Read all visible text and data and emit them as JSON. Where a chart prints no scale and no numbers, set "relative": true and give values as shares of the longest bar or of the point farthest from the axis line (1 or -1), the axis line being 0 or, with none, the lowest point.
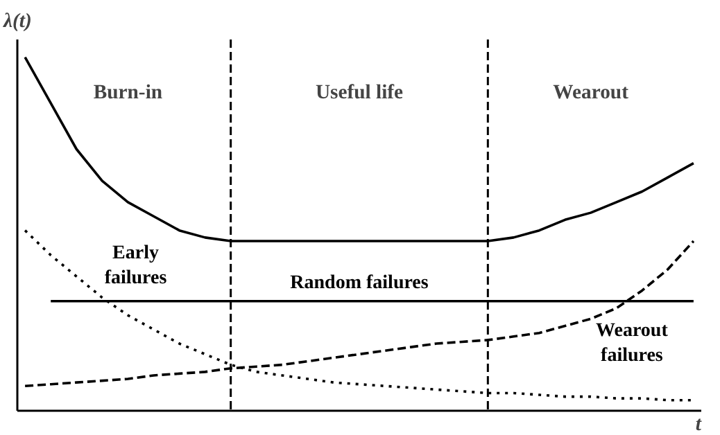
{
  "chart_data": {
    "type": "line",
    "relative": true,
    "ylabel": "λ(t)",
    "xlabel": "t",
    "categories": [
      null,
      null,
      null,
      null,
      null,
      null,
      null,
      null,
      null,
      null,
      null,
      null,
      null,
      null,
      null,
      null,
      null,
      null,
      null,
      null,
      null,
      null,
      null,
      null,
      null,
      null,
      null
    ],
    "series": [
      {
        "color": "#000000",
        "line_style": "solid",
        "values": [
          1.0,
          0.87,
          0.74,
          0.65,
          0.59,
          0.55,
          0.51,
          0.49,
          0.48,
          0.48,
          0.48,
          0.48,
          0.48,
          0.48,
          0.48,
          0.48,
          0.48,
          0.48,
          0.48,
          0.49,
          0.51,
          0.54,
          0.56,
          0.59,
          0.62,
          0.66,
          0.7
        ]
      },
      {
        "name": "Early failures",
        "color": "#000000",
        "line_style": "dotted",
        "values": [
          0.51,
          0.44,
          0.38,
          0.32,
          0.27,
          0.23,
          0.19,
          0.16,
          0.13,
          0.11,
          0.1,
          0.09,
          0.08,
          0.075,
          0.07,
          0.065,
          0.06,
          0.055,
          0.05,
          0.05,
          0.045,
          0.04,
          0.04,
          0.035,
          0.035,
          0.03,
          0.03
        ]
      },
      {
        "name": "Random failures",
        "color": "#000000",
        "line_style": "solid",
        "values": [
          null,
          0.31,
          0.31,
          0.31,
          0.31,
          0.31,
          0.31,
          0.31,
          0.31,
          0.31,
          0.31,
          0.31,
          0.31,
          0.31,
          0.31,
          0.31,
          0.31,
          0.31,
          0.31,
          0.31,
          0.31,
          0.31,
          0.31,
          0.31,
          0.31,
          0.31,
          0.31
        ]
      },
      {
        "name": "Wearout failures",
        "color": "#000000",
        "line_style": "dashed",
        "values": [
          0.07,
          0.075,
          0.08,
          0.085,
          0.09,
          0.1,
          0.105,
          0.11,
          0.12,
          0.125,
          0.13,
          0.14,
          0.15,
          0.16,
          0.17,
          0.18,
          0.19,
          0.195,
          0.2,
          0.21,
          0.22,
          0.24,
          0.26,
          0.29,
          0.34,
          0.4,
          0.48
        ]
      }
    ],
    "annotations": [
      "Burn-in",
      "Useful life",
      "Wearout"
    ]
  }
}
